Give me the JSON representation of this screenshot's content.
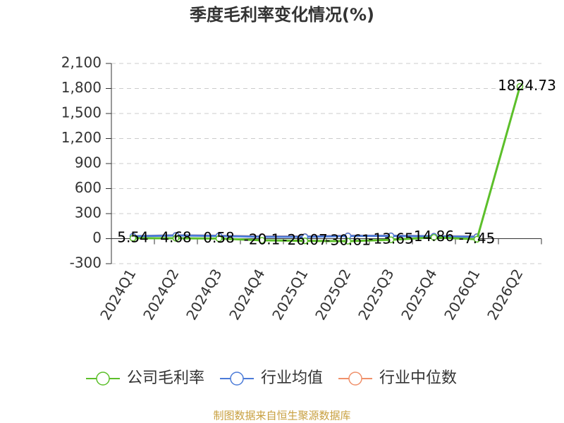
{
  "chart_data": {
    "type": "line",
    "title": "季度毛利率变化情况(%)",
    "categories": [
      "2024Q1",
      "2024Q2",
      "2024Q3",
      "2024Q4",
      "2025Q1",
      "2025Q2",
      "2025Q3",
      "2025Q4",
      "2026Q1",
      "2026Q2"
    ],
    "series": [
      {
        "name": "公司毛利率",
        "color": "#5cbf2a",
        "values": [
          5.54,
          4.68,
          0.58,
          -20.1,
          -26.07,
          -30.61,
          -13.65,
          14.86,
          -7.45,
          1824.73
        ],
        "value_labels": [
          "5.54",
          "4.68",
          "0.58",
          "-20.1",
          "-26.07",
          "-30.61",
          "-13.65",
          "14.86",
          "-7.45",
          "1824.73"
        ]
      },
      {
        "name": "行业均值",
        "color": "#4b7bd8",
        "values": [
          28,
          38,
          33,
          22,
          22,
          32,
          33,
          28,
          22,
          null
        ]
      },
      {
        "name": "行业中位数",
        "color": "#f0906a",
        "values": [
          30,
          40,
          35,
          25,
          25,
          35,
          35,
          30,
          25,
          null
        ]
      }
    ],
    "ylim": [
      -300,
      2100
    ],
    "yticks": [
      -300,
      0,
      300,
      600,
      900,
      {
        "value": 1200,
        "label": "1,200"
      },
      {
        "value": 1500,
        "label": "1,500"
      },
      {
        "value": 1800,
        "label": "1,800"
      },
      {
        "value": 2100,
        "label": "2,100"
      }
    ],
    "grid": true,
    "footer": "制图数据来自恒生聚源数据库"
  }
}
